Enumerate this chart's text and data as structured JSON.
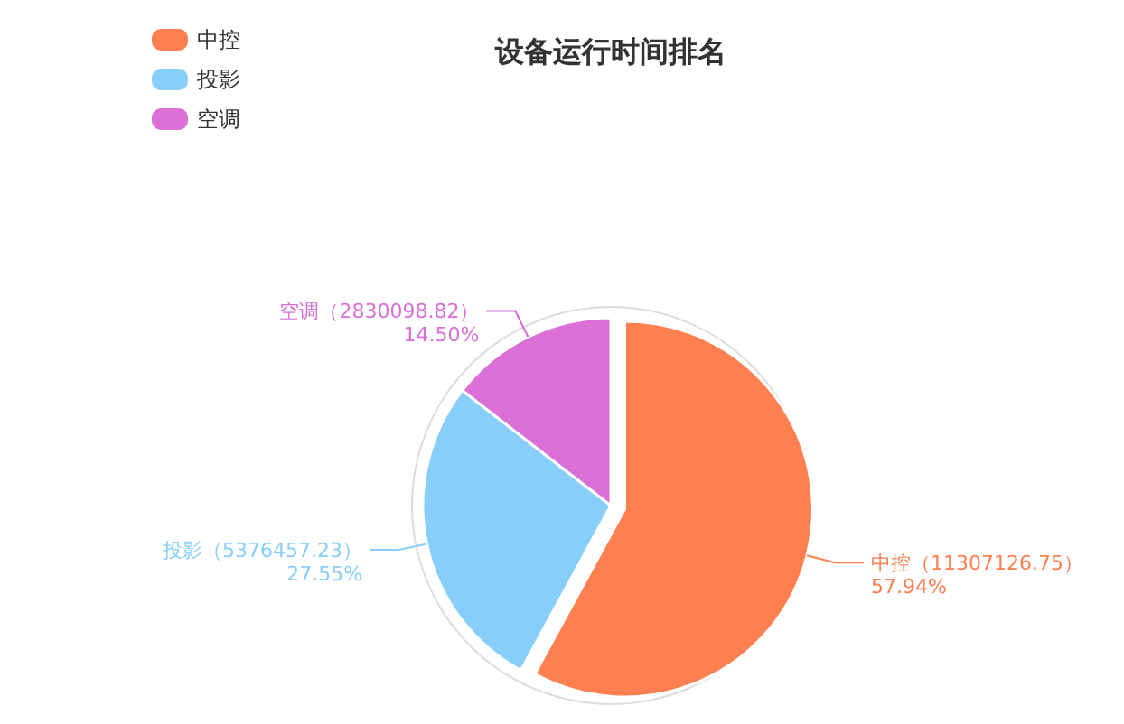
{
  "chart_data": {
    "type": "pie",
    "title": "设备运行时间排名",
    "categories": [
      "中控",
      "投影",
      "空调"
    ],
    "values": [
      11307126.75,
      5376457.23,
      2830098.82
    ],
    "value_labels": [
      "中控（11307126.75）\n57.94%",
      "投影（5376457.23）\n27.55%",
      "空调（2830098.82）\n14.50%"
    ],
    "colors": [
      "#ff7f50",
      "#87cefa",
      "#da70d6"
    ],
    "legend": "top left"
  }
}
